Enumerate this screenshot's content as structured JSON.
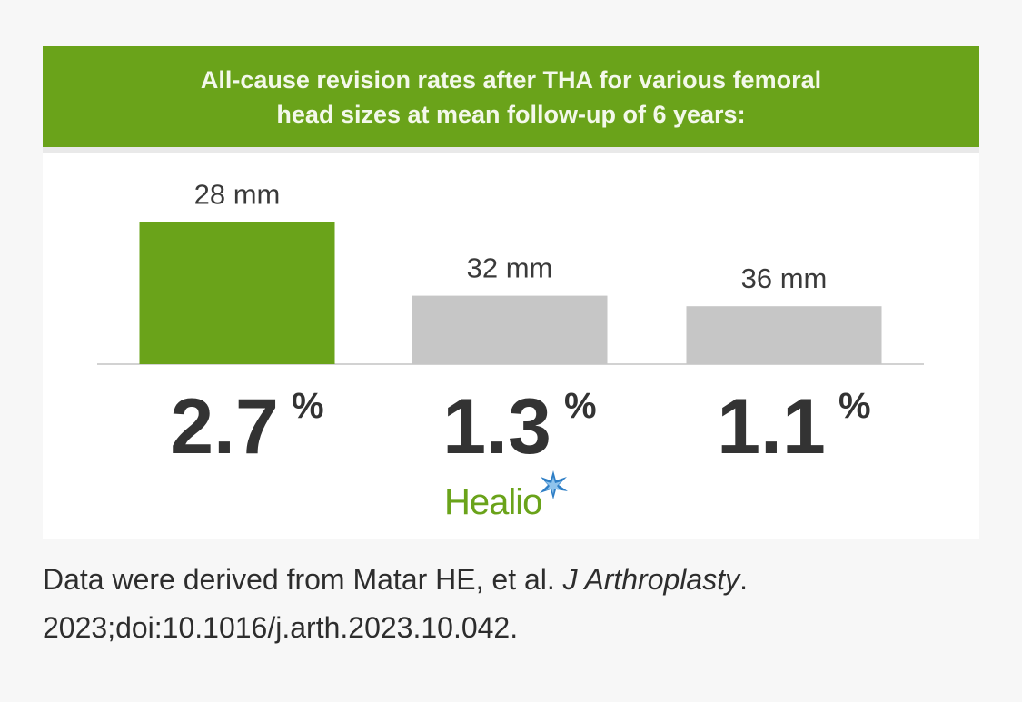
{
  "chart_data": {
    "type": "bar",
    "title_lines": [
      "All-cause revision rates after THA for various femoral",
      "head sizes at mean follow-up of 6 years:"
    ],
    "categories": [
      "28 mm",
      "32 mm",
      "36 mm"
    ],
    "values": [
      2.7,
      1.3,
      1.1
    ],
    "value_labels": [
      "2.7",
      "1.3",
      "1.1"
    ],
    "unit": "%",
    "highlight_index": 0,
    "colors": {
      "banner": "#6aa31a",
      "highlight": "#6aa31a",
      "bar": "#c6c6c6",
      "baseline": "#d2d2d2",
      "value_text": "#333333"
    }
  },
  "logo": {
    "text": "Healio",
    "icon": "star-burst-icon"
  },
  "caption": {
    "lead": "Data were derived from Matar HE, et al.",
    "journal": "J Arthroplasty",
    "period": ".",
    "reference": "2023;doi:10.1016/j.arth.2023.10.042."
  }
}
